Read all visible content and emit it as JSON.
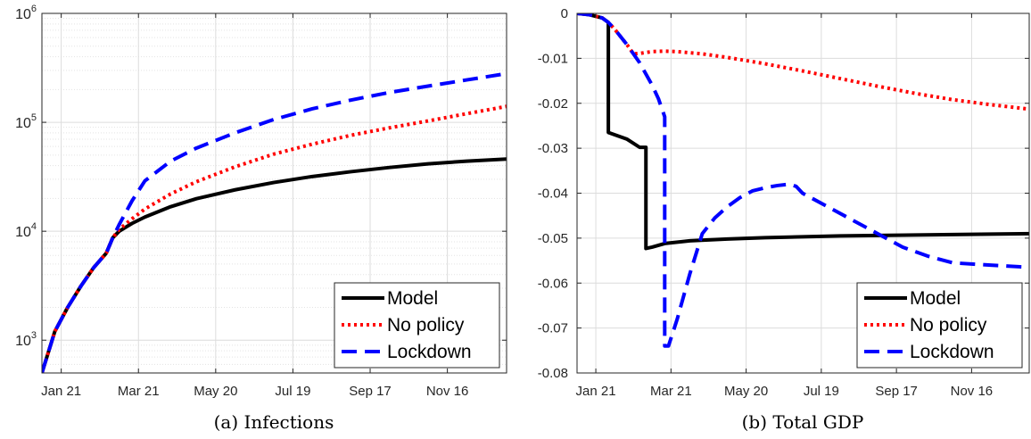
{
  "chart_data": [
    {
      "type": "line",
      "panel_caption": "(a) Infections",
      "yscale": "log",
      "ylim": [
        500,
        1000000
      ],
      "y_ticks": [
        1000,
        10000,
        100000,
        1000000
      ],
      "y_tick_labels": [
        {
          "base": "10",
          "exp": "3"
        },
        {
          "base": "10",
          "exp": "4"
        },
        {
          "base": "10",
          "exp": "5"
        },
        {
          "base": "10",
          "exp": "6"
        }
      ],
      "x_tick_labels": [
        "Jan 21",
        "Mar 21",
        "May 20",
        "Jul 19",
        "Sep 17",
        "Nov 16"
      ],
      "grid": true,
      "legend_position": "bottom-right",
      "series": [
        {
          "name": "Model",
          "color": "#000000",
          "style": "solid",
          "x": [
            0,
            10,
            20,
            30,
            40,
            50,
            55,
            60,
            70,
            80,
            100,
            120,
            150,
            180,
            210,
            240,
            270,
            300,
            330,
            361
          ],
          "y": [
            500,
            1200,
            2000,
            3100,
            4600,
            6300,
            8700,
            10000,
            11800,
            13500,
            16800,
            19900,
            24000,
            28000,
            31800,
            35200,
            38500,
            41600,
            44000,
            46000
          ]
        },
        {
          "name": "No policy",
          "color": "#ff0000",
          "style": "dotted",
          "x": [
            0,
            10,
            20,
            30,
            40,
            50,
            55,
            60,
            70,
            80,
            100,
            120,
            150,
            180,
            210,
            240,
            270,
            300,
            330,
            361
          ],
          "y": [
            500,
            1200,
            2000,
            3100,
            4600,
            6300,
            8700,
            10400,
            13000,
            16000,
            22000,
            28500,
            39000,
            51000,
            63000,
            76000,
            89000,
            103000,
            120000,
            140000
          ]
        },
        {
          "name": "Lockdown",
          "color": "#0000ff",
          "style": "dashed",
          "x": [
            0,
            10,
            20,
            30,
            40,
            50,
            55,
            60,
            70,
            80,
            100,
            120,
            150,
            180,
            210,
            240,
            270,
            300,
            330,
            361
          ],
          "y": [
            500,
            1200,
            2000,
            3100,
            4600,
            6300,
            8700,
            11500,
            19000,
            29000,
            44000,
            58000,
            80000,
            106000,
            133000,
            160000,
            188000,
            215000,
            245000,
            280000
          ]
        }
      ],
      "legend": [
        "Model",
        "No policy",
        "Lockdown"
      ]
    },
    {
      "type": "line",
      "panel_caption": "(b) Total GDP",
      "ylim": [
        -0.08,
        0
      ],
      "y_ticks": [
        0,
        -0.01,
        -0.02,
        -0.03,
        -0.04,
        -0.05,
        -0.06,
        -0.07,
        -0.08
      ],
      "y_tick_labels": [
        "0",
        "-0.01",
        "-0.02",
        "-0.03",
        "-0.04",
        "-0.05",
        "-0.06",
        "-0.07",
        "-0.08"
      ],
      "x_tick_labels": [
        "Jan 21",
        "Mar 21",
        "May 20",
        "Jul 19",
        "Sep 17",
        "Nov 16"
      ],
      "grid": true,
      "legend_position": "bottom-right",
      "series": [
        {
          "name": "Model",
          "color": "#000000",
          "style": "solid",
          "x": [
            0,
            10,
            20,
            25,
            25,
            30,
            40,
            50,
            50,
            55,
            55,
            60,
            70,
            90,
            120,
            150,
            180,
            210,
            240,
            270,
            300,
            330,
            361
          ],
          "y": [
            0,
            -0.0003,
            -0.001,
            -0.002,
            -0.0265,
            -0.027,
            -0.028,
            -0.0298,
            -0.0298,
            -0.0298,
            -0.0523,
            -0.052,
            -0.0512,
            -0.0506,
            -0.0502,
            -0.0499,
            -0.0497,
            -0.0495,
            -0.0494,
            -0.0493,
            -0.0492,
            -0.0491,
            -0.049
          ]
        },
        {
          "name": "No policy",
          "color": "#ff0000",
          "style": "dotted",
          "x": [
            0,
            10,
            20,
            25,
            30,
            40,
            45,
            50,
            60,
            70,
            80,
            100,
            120,
            150,
            180,
            210,
            240,
            270,
            300,
            330,
            361
          ],
          "y": [
            0,
            -0.0003,
            -0.001,
            -0.002,
            -0.0035,
            -0.007,
            -0.009,
            -0.0089,
            -0.0085,
            -0.0084,
            -0.0085,
            -0.009,
            -0.0098,
            -0.0112,
            -0.0128,
            -0.0145,
            -0.0162,
            -0.0178,
            -0.0192,
            -0.0203,
            -0.0213
          ]
        },
        {
          "name": "Lockdown",
          "color": "#0000ff",
          "style": "dashed",
          "x": [
            0,
            10,
            20,
            25,
            30,
            40,
            50,
            60,
            65,
            70,
            70,
            73,
            80,
            90,
            100,
            110,
            120,
            130,
            140,
            150,
            160,
            170,
            175,
            180,
            200,
            220,
            240,
            260,
            280,
            300,
            330,
            361
          ],
          "y": [
            0,
            -0.0003,
            -0.001,
            -0.002,
            -0.0035,
            -0.007,
            -0.011,
            -0.016,
            -0.019,
            -0.023,
            -0.074,
            -0.074,
            -0.068,
            -0.058,
            -0.049,
            -0.0455,
            -0.043,
            -0.041,
            -0.0395,
            -0.0388,
            -0.0383,
            -0.038,
            -0.0385,
            -0.04,
            -0.043,
            -0.046,
            -0.049,
            -0.052,
            -0.054,
            -0.0555,
            -0.056,
            -0.0565
          ]
        }
      ],
      "legend": [
        "Model",
        "No policy",
        "Lockdown"
      ]
    }
  ]
}
